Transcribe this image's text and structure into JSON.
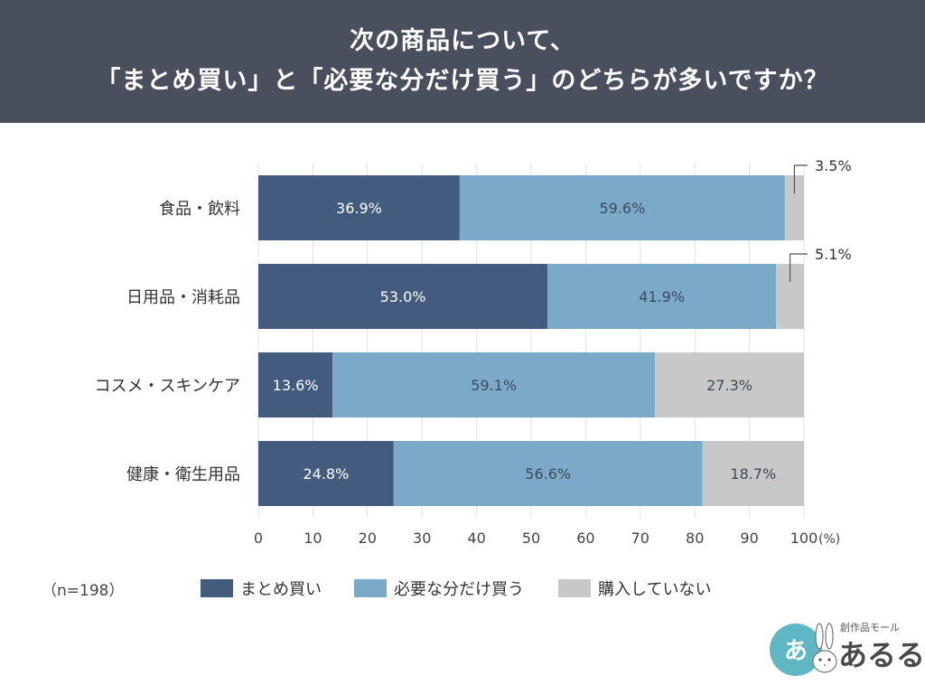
{
  "header": {
    "line1": "次の商品について、",
    "line2": "「まとめ買い」と「必要な分だけ買う」のどちらが多いですか？"
  },
  "chart_data": {
    "type": "bar",
    "orientation": "horizontal",
    "stacked": true,
    "categories": [
      "食品・飲料",
      "日用品・消耗品",
      "コスメ・スキンケア",
      "健康・衛生用品"
    ],
    "series": [
      {
        "name": "まとめ買い",
        "values": [
          36.9,
          53.0,
          13.6,
          24.8
        ],
        "labels": [
          "36.9%",
          "53.0%",
          "13.6%",
          "24.8%"
        ],
        "color": "#445b80",
        "label_color": "#ffffff"
      },
      {
        "name": "必要な分だけ買う",
        "values": [
          59.6,
          41.9,
          59.1,
          56.6
        ],
        "labels": [
          "59.6%",
          "41.9%",
          "59.1%",
          "56.6%"
        ],
        "color": "#7ba9c8",
        "label_color": "#3d4a5c"
      },
      {
        "name": "購入していない",
        "values": [
          3.5,
          5.1,
          27.3,
          18.7
        ],
        "labels": [
          "3.5%",
          "5.1%",
          "27.3%",
          "18.7%"
        ],
        "color": "#c8c8c8",
        "label_color": "#3d4a5c"
      }
    ],
    "callout_labels": [
      true,
      true,
      false,
      false
    ],
    "xlim": [
      0,
      100
    ],
    "xticks": [
      0,
      10,
      20,
      30,
      40,
      50,
      60,
      70,
      80,
      90,
      100
    ],
    "x_unit": "(%)",
    "grid": true,
    "legend_position": "bottom"
  },
  "sample_note": "（n=198）",
  "logo": {
    "circle_text": "あ",
    "small_text": "創作品モール",
    "big_text": "あるる"
  },
  "colors": {
    "header_bg": "#4a4f5e",
    "grid": "#e0e0e0"
  }
}
